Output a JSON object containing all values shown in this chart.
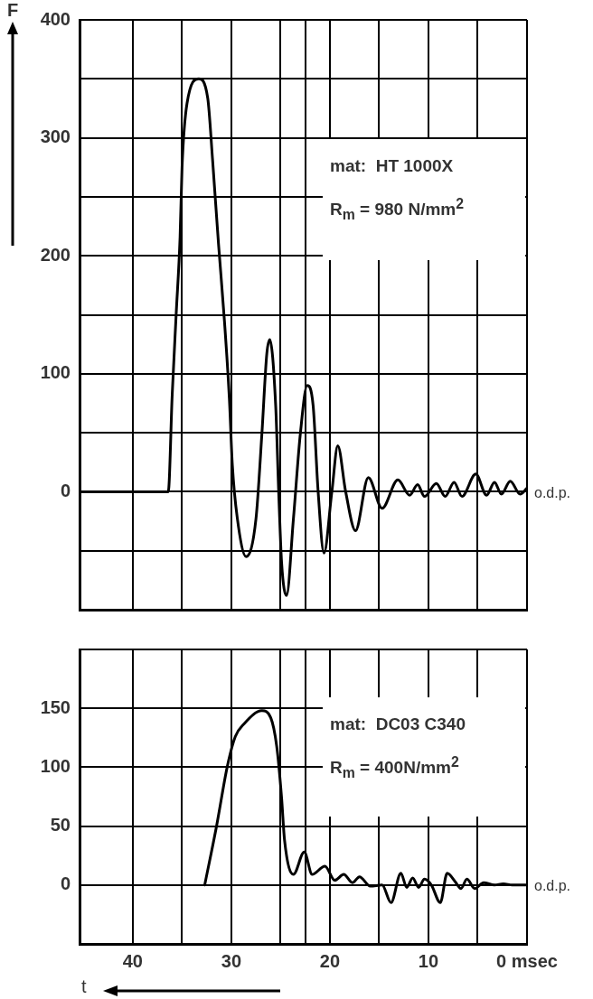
{
  "chart_data": [
    {
      "type": "line",
      "ylabel": "F",
      "color": "#000000",
      "marker": "none",
      "grid": true,
      "tick_labels": "y",
      "xlim": [
        45.4,
        0
      ],
      "xticks": [
        40,
        {
          "value": 35,
          "label": null
        },
        30,
        {
          "value": 25,
          "label": null
        },
        {
          "value": 22.5,
          "label": null
        },
        20,
        {
          "value": 15,
          "label": null
        },
        10,
        {
          "value": 5,
          "label": null
        },
        0
      ],
      "ylim": [
        -100,
        400
      ],
      "yticks": [
        {
          "value": -100,
          "label": null
        },
        {
          "value": -50,
          "label": null
        },
        0,
        {
          "value": 50,
          "label": null
        },
        100,
        {
          "value": 150,
          "label": null
        },
        200,
        {
          "value": 250,
          "label": null
        },
        300,
        {
          "value": 350,
          "label": null
        },
        400
      ],
      "annotations": [
        "mat:  HT 1000X",
        "R$_{m}$ = 980 N/mm$^{2}$",
        {
          "text": "o.d.p.",
          "x": 0,
          "y": 0
        }
      ],
      "x": [
        45.4,
        36.4,
        36.0,
        35.6,
        35.2,
        35.0,
        34.5,
        33.3,
        32.4,
        31.9,
        31.3,
        30.7,
        30.2,
        29.9,
        29.4,
        28.5,
        27.5,
        26.9,
        26.4,
        26.1,
        25.5,
        25.2,
        24.9,
        24.4,
        23.7,
        23.0,
        22.3,
        21.7,
        21.2,
        20.6,
        19.8,
        19.2,
        18.4,
        17.4,
        16.1,
        14.7,
        13.1,
        11.9,
        11.1,
        10.4,
        9.2,
        8.3,
        7.4,
        6.6,
        5.2,
        4.1,
        3.3,
        2.6,
        1.7,
        0.7,
        0
      ],
      "values": [
        0,
        0,
        82,
        150,
        216,
        275,
        329,
        350,
        334,
        281,
        210,
        145,
        79,
        23,
        -22,
        -55,
        -23,
        49,
        117,
        129,
        73,
        1,
        -60,
        -88,
        -23,
        49,
        90,
        73,
        1,
        -52,
        0,
        39,
        0,
        -33,
        12,
        -14,
        10,
        -3,
        6,
        -4,
        7,
        -4,
        8,
        -4,
        15,
        -3,
        8,
        -2,
        9,
        -2,
        3
      ]
    },
    {
      "type": "line",
      "xlabel": "t",
      "color": "#000000",
      "marker": "none",
      "grid": true,
      "xlim": [
        45.4,
        0
      ],
      "xticks": [
        40,
        {
          "value": 35,
          "label": null
        },
        30,
        {
          "value": 25,
          "label": null
        },
        {
          "value": 22.5,
          "label": null
        },
        20,
        {
          "value": 15,
          "label": null
        },
        10,
        {
          "value": 5,
          "label": null
        },
        {
          "value": 0,
          "label": "0 msec"
        }
      ],
      "ylim": [
        -50,
        200
      ],
      "yticks": [
        {
          "value": -50,
          "label": null
        },
        0,
        50,
        100,
        150,
        {
          "value": 200,
          "label": null
        }
      ],
      "annotations": [
        "mat:  DC03 C340",
        "R$_{m}$ = 400N/mm$^{2}$",
        {
          "text": "o.d.p.",
          "x": 0,
          "y": 0
        }
      ],
      "x": [
        32.7,
        31.5,
        30.4,
        29.6,
        28.7,
        26.9,
        26.0,
        25.4,
        24.9,
        24.6,
        23.7,
        22.6,
        21.8,
        20.5,
        19.5,
        18.6,
        17.7,
        17.0,
        15.9,
        14.7,
        13.8,
        12.8,
        12.2,
        11.6,
        11.0,
        10.4,
        9.7,
        8.8,
        8.1,
        7.3,
        6.7,
        6.1,
        5.3,
        4.4,
        3.3,
        2.4,
        1.5,
        0.7,
        0
      ],
      "values": [
        0,
        50,
        101,
        126,
        137,
        148,
        142,
        118,
        74,
        38,
        9,
        28,
        9,
        16,
        4,
        9,
        2,
        7,
        -1,
        0,
        -15,
        10,
        -2,
        6,
        -2,
        5,
        0,
        -15,
        10,
        3,
        -3,
        5,
        -3,
        2,
        0,
        1,
        0,
        0,
        0
      ]
    }
  ]
}
